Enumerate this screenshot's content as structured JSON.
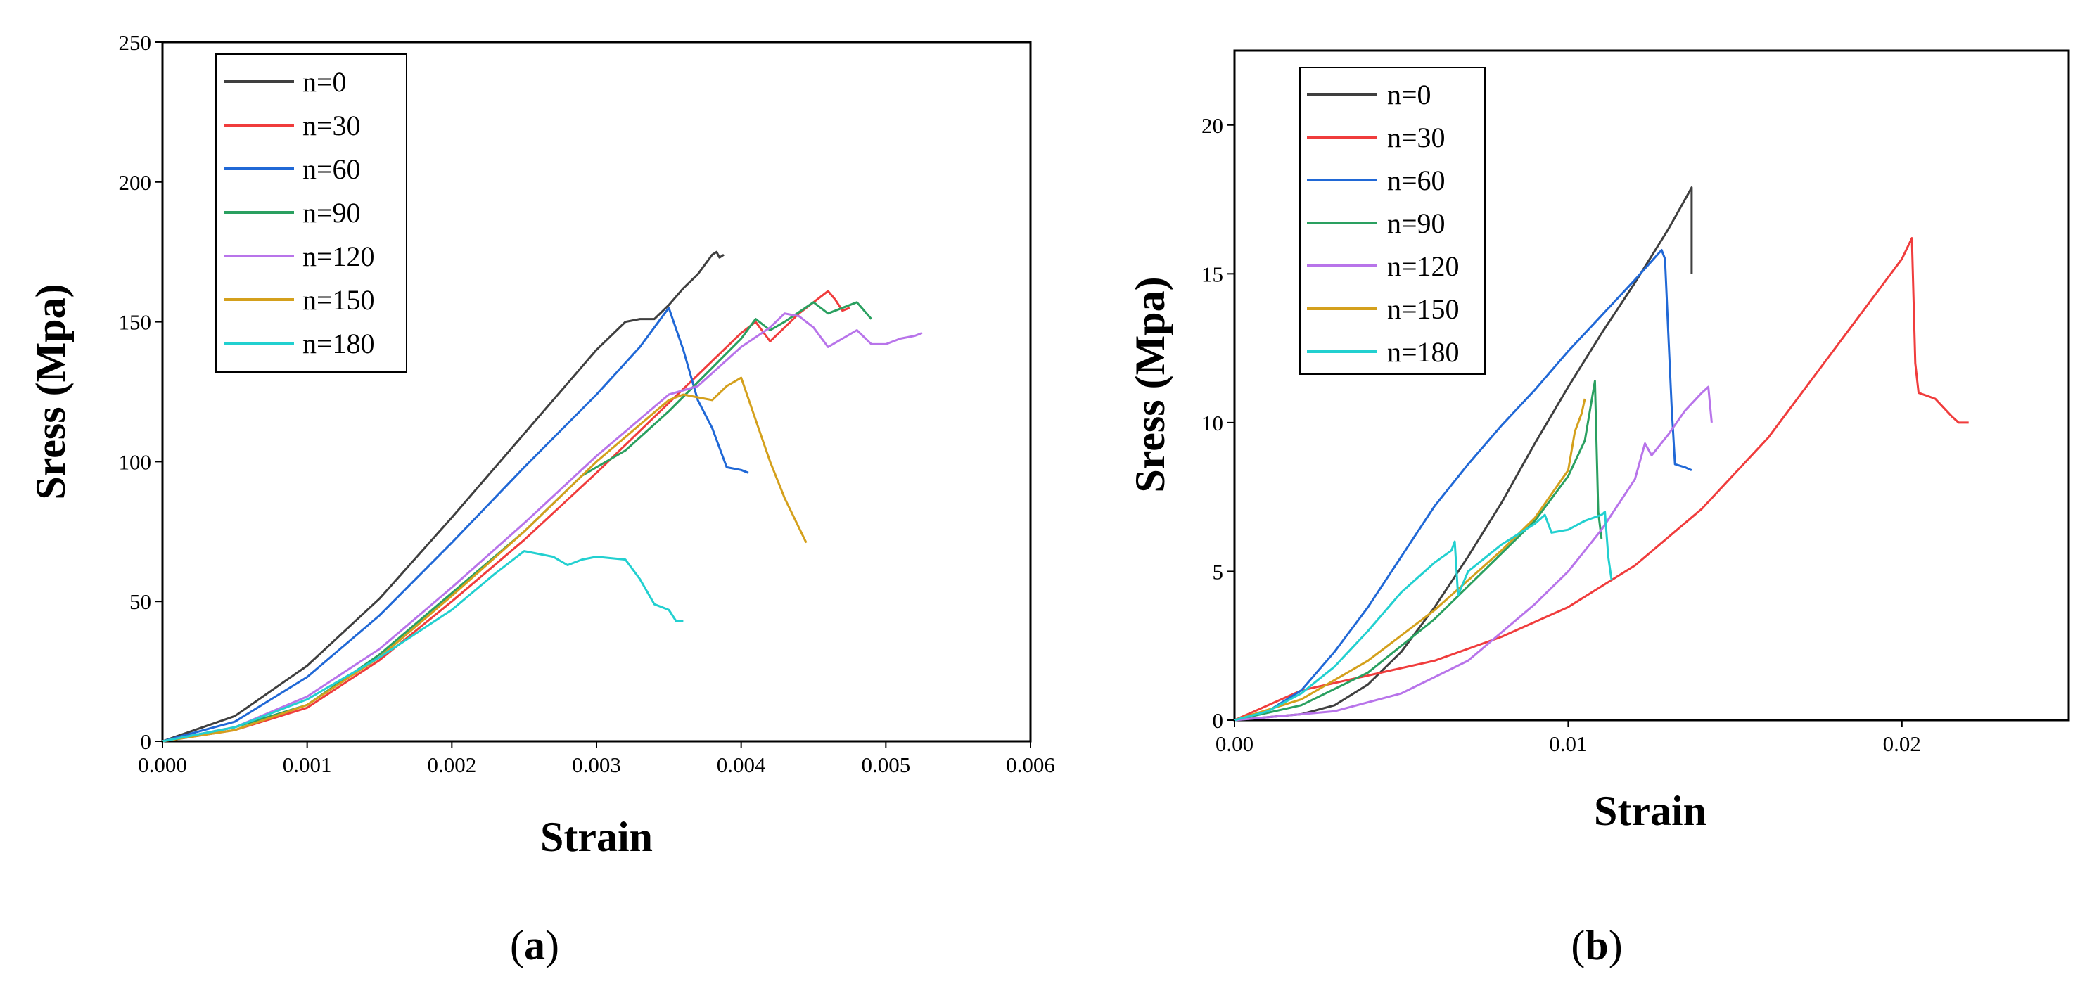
{
  "chart_data": [
    {
      "type": "line",
      "panel_label": "a",
      "xlabel": "Strain",
      "ylabel": "Sress (Mpa)",
      "xlim": [
        0,
        0.006
      ],
      "ylim": [
        0,
        250
      ],
      "xticks": [
        "0.000",
        "0.001",
        "0.002",
        "0.003",
        "0.004",
        "0.005",
        "0.006"
      ],
      "xtick_values": [
        0,
        0.001,
        0.002,
        0.003,
        0.004,
        0.005,
        0.006
      ],
      "yticks": [
        "0",
        "50",
        "100",
        "150",
        "200",
        "250"
      ],
      "ytick_values": [
        0,
        50,
        100,
        150,
        200,
        250
      ],
      "grid": false,
      "legend_position": "top-left",
      "series": [
        {
          "name": "n=0",
          "color": "#3f3f3f",
          "points": [
            [
              0,
              0
            ],
            [
              0.0005,
              9
            ],
            [
              0.001,
              27
            ],
            [
              0.0015,
              51
            ],
            [
              0.002,
              80
            ],
            [
              0.0025,
              110
            ],
            [
              0.003,
              140
            ],
            [
              0.0032,
              150
            ],
            [
              0.0033,
              151
            ],
            [
              0.0034,
              151
            ],
            [
              0.0035,
              156
            ],
            [
              0.0036,
              162
            ],
            [
              0.0037,
              167
            ],
            [
              0.0038,
              174
            ],
            [
              0.00383,
              175
            ],
            [
              0.00385,
              173
            ],
            [
              0.00388,
              174
            ]
          ]
        },
        {
          "name": "n=30",
          "color": "#f03c3c",
          "points": [
            [
              0,
              0
            ],
            [
              0.0005,
              4
            ],
            [
              0.001,
              12
            ],
            [
              0.0015,
              29
            ],
            [
              0.002,
              50
            ],
            [
              0.0025,
              72
            ],
            [
              0.003,
              96
            ],
            [
              0.0035,
              121
            ],
            [
              0.004,
              146
            ],
            [
              0.0041,
              150
            ],
            [
              0.0042,
              143
            ],
            [
              0.0043,
              148
            ],
            [
              0.0044,
              153
            ],
            [
              0.0045,
              157
            ],
            [
              0.0046,
              161
            ],
            [
              0.00465,
              158
            ],
            [
              0.0047,
              154
            ],
            [
              0.00475,
              155
            ]
          ]
        },
        {
          "name": "n=60",
          "color": "#2068d6",
          "points": [
            [
              0,
              0
            ],
            [
              0.0005,
              7
            ],
            [
              0.001,
              23
            ],
            [
              0.0015,
              45
            ],
            [
              0.002,
              71
            ],
            [
              0.0025,
              98
            ],
            [
              0.003,
              124
            ],
            [
              0.0033,
              141
            ],
            [
              0.0035,
              155
            ],
            [
              0.0036,
              140
            ],
            [
              0.0037,
              122
            ],
            [
              0.0038,
              112
            ],
            [
              0.0039,
              98
            ],
            [
              0.004,
              97
            ],
            [
              0.00405,
              96
            ]
          ]
        },
        {
          "name": "n=90",
          "color": "#2aa060",
          "points": [
            [
              0,
              0
            ],
            [
              0.0005,
              5
            ],
            [
              0.001,
              13
            ],
            [
              0.0015,
              31
            ],
            [
              0.002,
              53
            ],
            [
              0.0025,
              75
            ],
            [
              0.0029,
              95
            ],
            [
              0.0032,
              104
            ],
            [
              0.0035,
              118
            ],
            [
              0.004,
              144
            ],
            [
              0.0041,
              151
            ],
            [
              0.0042,
              147
            ],
            [
              0.0043,
              150
            ],
            [
              0.0045,
              157
            ],
            [
              0.0046,
              153
            ],
            [
              0.0048,
              157
            ],
            [
              0.0049,
              151
            ]
          ]
        },
        {
          "name": "n=120",
          "color": "#b874ea",
          "points": [
            [
              0,
              0
            ],
            [
              0.0005,
              5
            ],
            [
              0.001,
              16
            ],
            [
              0.0015,
              33
            ],
            [
              0.002,
              55
            ],
            [
              0.0025,
              78
            ],
            [
              0.003,
              102
            ],
            [
              0.0035,
              124
            ],
            [
              0.0037,
              127
            ],
            [
              0.004,
              141
            ],
            [
              0.0042,
              148
            ],
            [
              0.0043,
              153
            ],
            [
              0.0044,
              152
            ],
            [
              0.0045,
              148
            ],
            [
              0.0046,
              141
            ],
            [
              0.0047,
              144
            ],
            [
              0.0048,
              147
            ],
            [
              0.0049,
              142
            ],
            [
              0.005,
              142
            ],
            [
              0.0051,
              144
            ],
            [
              0.0052,
              145
            ],
            [
              0.00525,
              146
            ]
          ]
        },
        {
          "name": "n=150",
          "color": "#d4a01c",
          "points": [
            [
              0,
              0
            ],
            [
              0.0005,
              4
            ],
            [
              0.001,
              13
            ],
            [
              0.0015,
              30
            ],
            [
              0.002,
              52
            ],
            [
              0.0025,
              75
            ],
            [
              0.003,
              100
            ],
            [
              0.0035,
              122
            ],
            [
              0.0036,
              124
            ],
            [
              0.0037,
              123
            ],
            [
              0.0038,
              122
            ],
            [
              0.0039,
              127
            ],
            [
              0.004,
              130
            ],
            [
              0.0041,
              115
            ],
            [
              0.0042,
              100
            ],
            [
              0.0043,
              87
            ],
            [
              0.00445,
              71
            ]
          ]
        },
        {
          "name": "n=180",
          "color": "#22d0d0",
          "points": [
            [
              0,
              0
            ],
            [
              0.0005,
              5
            ],
            [
              0.001,
              15
            ],
            [
              0.0015,
              30
            ],
            [
              0.002,
              47
            ],
            [
              0.0023,
              60
            ],
            [
              0.0025,
              68
            ],
            [
              0.0027,
              66
            ],
            [
              0.0028,
              63
            ],
            [
              0.0029,
              65
            ],
            [
              0.003,
              66
            ],
            [
              0.0032,
              65
            ],
            [
              0.0033,
              58
            ],
            [
              0.0034,
              49
            ],
            [
              0.0035,
              47
            ],
            [
              0.00355,
              43
            ],
            [
              0.0036,
              43
            ]
          ]
        }
      ]
    },
    {
      "type": "line",
      "panel_label": "b",
      "xlabel": "Strain",
      "ylabel": "Sress (Mpa)",
      "xlim": [
        0,
        0.025
      ],
      "ylim": [
        0,
        22.5
      ],
      "xticks": [
        "0.00",
        "0.01",
        "0.02"
      ],
      "xtick_values": [
        0,
        0.01,
        0.02
      ],
      "yticks": [
        "0",
        "5",
        "10",
        "15",
        "20"
      ],
      "ytick_values": [
        0,
        5,
        10,
        15,
        20
      ],
      "grid": false,
      "legend_position": "top-left",
      "series": [
        {
          "name": "n=0",
          "color": "#3f3f3f",
          "points": [
            [
              0,
              0
            ],
            [
              0.002,
              0.2
            ],
            [
              0.003,
              0.5
            ],
            [
              0.004,
              1.2
            ],
            [
              0.005,
              2.3
            ],
            [
              0.006,
              3.8
            ],
            [
              0.007,
              5.5
            ],
            [
              0.008,
              7.3
            ],
            [
              0.009,
              9.3
            ],
            [
              0.01,
              11.2
            ],
            [
              0.011,
              13
            ],
            [
              0.012,
              14.7
            ],
            [
              0.013,
              16.5
            ],
            [
              0.0136,
              17.7
            ],
            [
              0.0137,
              17.9
            ],
            [
              0.0137,
              15
            ]
          ]
        },
        {
          "name": "n=30",
          "color": "#f03c3c",
          "points": [
            [
              0,
              0
            ],
            [
              0.002,
              1
            ],
            [
              0.004,
              1.5
            ],
            [
              0.006,
              2
            ],
            [
              0.008,
              2.8
            ],
            [
              0.01,
              3.8
            ],
            [
              0.012,
              5.2
            ],
            [
              0.014,
              7.1
            ],
            [
              0.016,
              9.5
            ],
            [
              0.018,
              12.5
            ],
            [
              0.02,
              15.5
            ],
            [
              0.0203,
              16.2
            ],
            [
              0.0204,
              12
            ],
            [
              0.0205,
              11
            ],
            [
              0.021,
              10.8
            ],
            [
              0.0215,
              10.2
            ],
            [
              0.0217,
              10
            ],
            [
              0.022,
              10
            ]
          ]
        },
        {
          "name": "n=60",
          "color": "#2068d6",
          "points": [
            [
              0,
              0
            ],
            [
              0.001,
              0.3
            ],
            [
              0.002,
              1
            ],
            [
              0.003,
              2.3
            ],
            [
              0.004,
              3.8
            ],
            [
              0.005,
              5.5
            ],
            [
              0.006,
              7.2
            ],
            [
              0.007,
              8.6
            ],
            [
              0.008,
              9.9
            ],
            [
              0.009,
              11.1
            ],
            [
              0.01,
              12.4
            ],
            [
              0.011,
              13.6
            ],
            [
              0.012,
              14.8
            ],
            [
              0.0128,
              15.8
            ],
            [
              0.0129,
              15.5
            ],
            [
              0.013,
              13
            ],
            [
              0.0131,
              10.5
            ],
            [
              0.0132,
              8.6
            ],
            [
              0.0135,
              8.5
            ],
            [
              0.0137,
              8.4
            ]
          ]
        },
        {
          "name": "n=90",
          "color": "#2aa060",
          "points": [
            [
              0,
              0
            ],
            [
              0.002,
              0.5
            ],
            [
              0.004,
              1.6
            ],
            [
              0.006,
              3.4
            ],
            [
              0.008,
              5.6
            ],
            [
              0.009,
              6.7
            ],
            [
              0.01,
              8.2
            ],
            [
              0.0105,
              9.4
            ],
            [
              0.0108,
              11.4
            ],
            [
              0.0109,
              7
            ],
            [
              0.011,
              6.1
            ]
          ]
        },
        {
          "name": "n=120",
          "color": "#b874ea",
          "points": [
            [
              0,
              0
            ],
            [
              0.003,
              0.3
            ],
            [
              0.005,
              0.9
            ],
            [
              0.007,
              2
            ],
            [
              0.009,
              3.9
            ],
            [
              0.01,
              5
            ],
            [
              0.011,
              6.4
            ],
            [
              0.012,
              8.1
            ],
            [
              0.0123,
              9.3
            ],
            [
              0.0125,
              8.9
            ],
            [
              0.013,
              9.6
            ],
            [
              0.0135,
              10.4
            ],
            [
              0.014,
              11
            ],
            [
              0.0142,
              11.2
            ],
            [
              0.0143,
              10
            ]
          ]
        },
        {
          "name": "n=150",
          "color": "#d4a01c",
          "points": [
            [
              0,
              0
            ],
            [
              0.002,
              0.7
            ],
            [
              0.004,
              2
            ],
            [
              0.006,
              3.7
            ],
            [
              0.008,
              5.7
            ],
            [
              0.009,
              6.8
            ],
            [
              0.01,
              8.4
            ],
            [
              0.0102,
              9.7
            ],
            [
              0.0104,
              10.3
            ],
            [
              0.0105,
              10.8
            ]
          ]
        },
        {
          "name": "n=180",
          "color": "#22d0d0",
          "points": [
            [
              0,
              0
            ],
            [
              0.001,
              0.3
            ],
            [
              0.002,
              0.9
            ],
            [
              0.003,
              1.8
            ],
            [
              0.004,
              3
            ],
            [
              0.005,
              4.3
            ],
            [
              0.006,
              5.3
            ],
            [
              0.0065,
              5.7
            ],
            [
              0.0066,
              6
            ],
            [
              0.0067,
              4.2
            ],
            [
              0.007,
              5
            ],
            [
              0.008,
              5.9
            ],
            [
              0.009,
              6.6
            ],
            [
              0.0093,
              6.9
            ],
            [
              0.0095,
              6.3
            ],
            [
              0.01,
              6.4
            ],
            [
              0.0105,
              6.7
            ],
            [
              0.011,
              6.9
            ],
            [
              0.0111,
              7
            ],
            [
              0.0112,
              5.5
            ],
            [
              0.0113,
              4.7
            ]
          ]
        }
      ]
    }
  ]
}
